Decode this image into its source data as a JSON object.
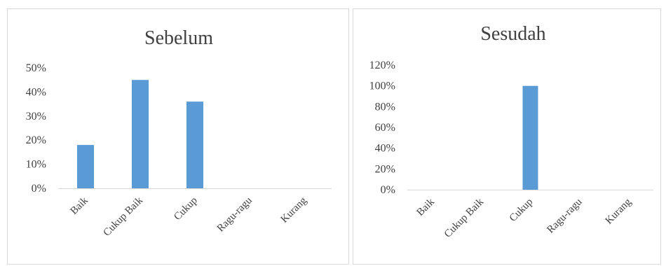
{
  "chart_data": [
    {
      "type": "bar",
      "title": "Sebelum",
      "categories": [
        "Baik",
        "Cukup Baik",
        "Cukup",
        "Ragu-ragu",
        "Kurang"
      ],
      "values": [
        18,
        45,
        36,
        0,
        0
      ],
      "y_ticks": [
        "0%",
        "10%",
        "20%",
        "30%",
        "40%",
        "50%"
      ],
      "ylim": [
        0,
        50
      ],
      "grid": false,
      "color": "#5b9bd5"
    },
    {
      "type": "bar",
      "title": "Sesudah",
      "categories": [
        "Baik",
        "Cukup Baik",
        "Cukup",
        "Ragu-ragu",
        "Kurang"
      ],
      "values": [
        0,
        0,
        100,
        0,
        0
      ],
      "y_ticks": [
        "0%",
        "20%",
        "40%",
        "60%",
        "80%",
        "100%",
        "120%"
      ],
      "ylim": [
        0,
        120
      ],
      "grid": false,
      "color": "#5b9bd5"
    }
  ]
}
